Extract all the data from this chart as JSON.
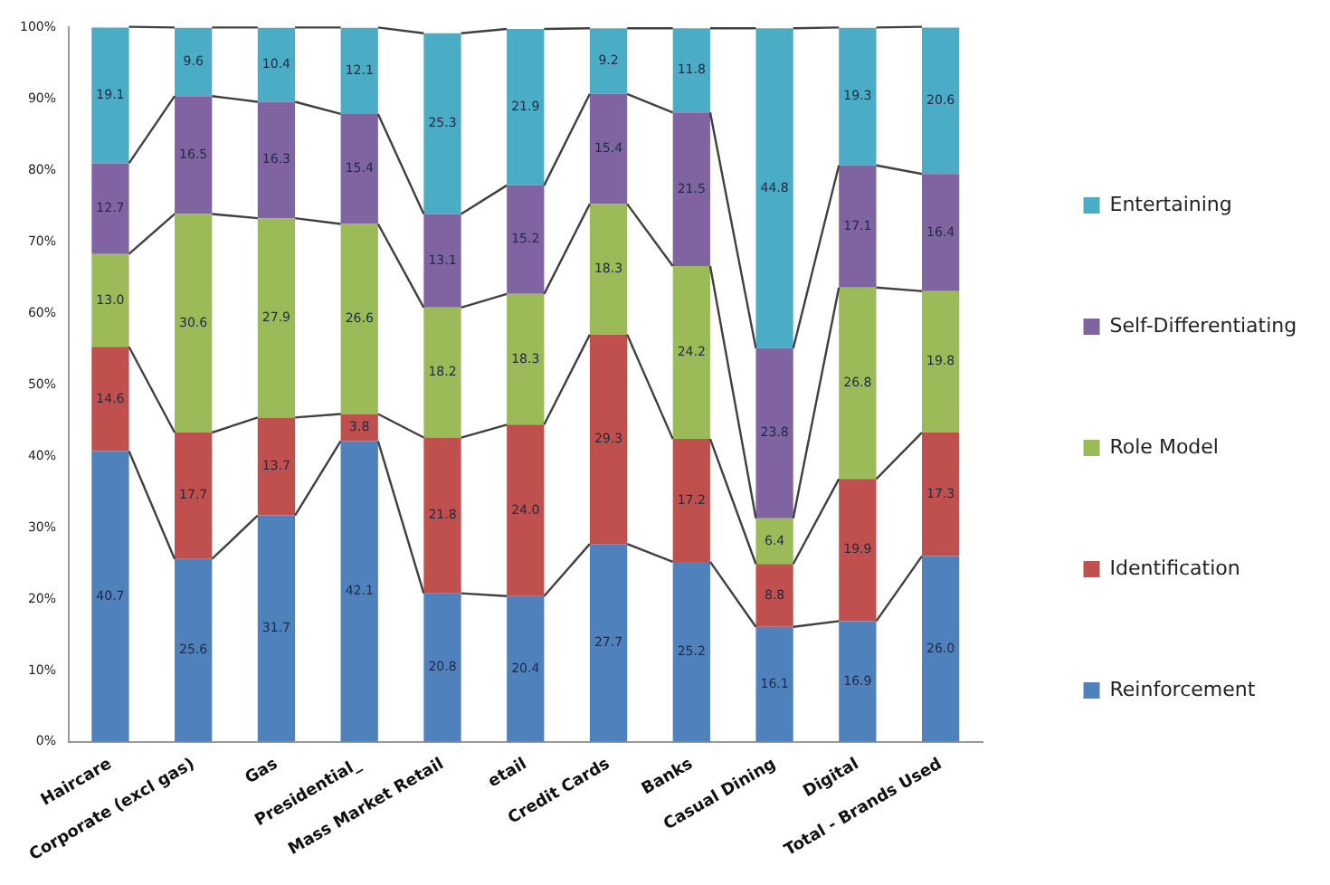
{
  "chart_data": {
    "type": "bar",
    "stacked": true,
    "categories": [
      "Haircare",
      "Corporate (excl gas)",
      "Gas",
      "Presidential_",
      "Mass Market Retail",
      "etail",
      "Credit Cards",
      "Banks",
      "Casual Dining",
      "Digital",
      "Total - Brands Used"
    ],
    "series": [
      {
        "name": "Reinforcement",
        "color": "#4f81bd",
        "values": [
          40.7,
          25.6,
          31.7,
          42.1,
          20.8,
          20.4,
          27.7,
          25.2,
          16.1,
          16.9,
          26.0
        ],
        "value_labels": [
          "40.7",
          "25.6",
          "31.7",
          "42.1",
          "20.8",
          "20.4",
          "27.7",
          "25.2",
          "16.1",
          "16.9",
          "26.0"
        ]
      },
      {
        "name": "Identification",
        "color": "#c0504d",
        "values": [
          14.6,
          17.7,
          13.7,
          3.8,
          21.8,
          24.0,
          29.3,
          17.2,
          8.8,
          19.9,
          17.3
        ],
        "value_labels": [
          "14.6",
          "17.7",
          "13.7",
          "3.8",
          "21.8",
          "24.0",
          "29.3",
          "17.2",
          "8.8",
          "19.9",
          "17.3"
        ]
      },
      {
        "name": "Role Model",
        "color": "#9bbb59",
        "values": [
          13.0,
          30.6,
          27.9,
          26.6,
          18.2,
          18.3,
          18.3,
          24.2,
          6.4,
          26.8,
          19.8
        ],
        "value_labels": [
          "13.0",
          "30.6",
          "27.9",
          "26.6",
          "18.2",
          "18.3",
          "18.3",
          "24.2",
          "6.4",
          "26.8",
          "19.8"
        ]
      },
      {
        "name": "Self-Differentiating",
        "color": "#8064a2",
        "values": [
          12.7,
          16.5,
          16.3,
          15.4,
          13.1,
          15.2,
          15.4,
          21.5,
          23.8,
          17.1,
          16.4
        ],
        "value_labels": [
          "12.7",
          "16.5",
          "16.3",
          "15.4",
          "13.1",
          "15.2",
          "15.4",
          "21.5",
          "23.8",
          "17.1",
          "16.4"
        ]
      },
      {
        "name": "Entertaining",
        "color": "#4bacc6",
        "values": [
          19.1,
          9.6,
          10.4,
          12.1,
          25.3,
          21.9,
          9.2,
          11.8,
          44.8,
          19.3,
          20.6
        ],
        "value_labels": [
          "19.1",
          "9.6",
          "10.4",
          "12.1",
          "25.3",
          "21.9",
          "9.2",
          "11.8",
          "44.8",
          "19.3",
          "20.6"
        ]
      }
    ],
    "ylim": [
      0,
      100
    ],
    "yticks": [
      {
        "value": 0,
        "label": "0%"
      },
      {
        "value": 10,
        "label": "10%"
      },
      {
        "value": 20,
        "label": "20%"
      },
      {
        "value": 30,
        "label": "30%"
      },
      {
        "value": 40,
        "label": "40%"
      },
      {
        "value": 50,
        "label": "50%"
      },
      {
        "value": 60,
        "label": "60%"
      },
      {
        "value": 70,
        "label": "70%"
      },
      {
        "value": 80,
        "label": "80%"
      },
      {
        "value": 90,
        "label": "90%"
      },
      {
        "value": 100,
        "label": "100%"
      }
    ],
    "grid": false,
    "legend": "right"
  }
}
